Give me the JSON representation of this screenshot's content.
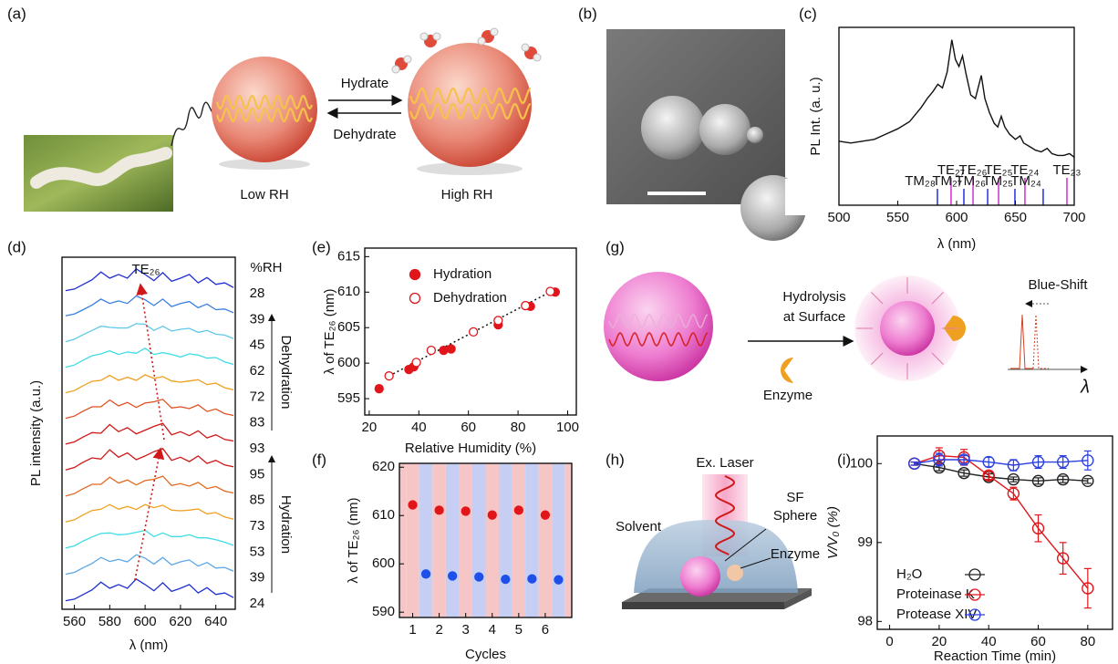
{
  "panel_labels": [
    "(a)",
    "(b)",
    "(c)",
    "(d)",
    "(e)",
    "(f)",
    "(g)",
    "(h)",
    "(i)"
  ],
  "diagram_a": {
    "arrow_top": "Hydrate",
    "arrow_bottom": "Dehydrate",
    "left": "Low RH",
    "right": "High RH"
  },
  "diagram_g": {
    "step": [
      "Hydrolysis",
      "at Surface"
    ],
    "shift": "Blue-Shift",
    "enzyme": "Enzyme",
    "axis": "λ"
  },
  "diagram_h": {
    "laser": "Ex. Laser",
    "sphere": [
      "SF",
      "Sphere"
    ],
    "solvent": "Solvent",
    "enzyme": "Enzyme"
  },
  "chart_data": [
    {
      "type": "line",
      "color": "#111111",
      "x_label": "λ (nm)",
      "y_label": "PL Int. (a. u.)",
      "xlim": [
        500,
        700
      ],
      "ylim": [
        0,
        1
      ],
      "xticks": [
        500,
        550,
        600,
        650,
        700
      ],
      "x": [
        500,
        510,
        520,
        530,
        540,
        550,
        560,
        570,
        575,
        580,
        584,
        588,
        592,
        596,
        599,
        602,
        605,
        608,
        612,
        616,
        621,
        624,
        628,
        632,
        635,
        638,
        641,
        645,
        650,
        654,
        657,
        662,
        667,
        672,
        677,
        681,
        686,
        691,
        696,
        700
      ],
      "values": [
        0.36,
        0.35,
        0.36,
        0.37,
        0.4,
        0.43,
        0.47,
        0.55,
        0.6,
        0.64,
        0.68,
        0.66,
        0.75,
        0.93,
        0.82,
        0.78,
        0.84,
        0.74,
        0.62,
        0.6,
        0.73,
        0.6,
        0.52,
        0.46,
        0.44,
        0.5,
        0.44,
        0.4,
        0.37,
        0.39,
        0.35,
        0.33,
        0.31,
        0.3,
        0.32,
        0.29,
        0.28,
        0.28,
        0.29,
        0.27
      ],
      "modes": [
        {
          "color": "#d63bd6",
          "labels": [
            "TE₂₇",
            "TE₂₆",
            "TE₂₅",
            "TE₂₄",
            "TE₂₃"
          ],
          "x": [
            595.3,
            614,
            635.7,
            658.1,
            693.8
          ]
        },
        {
          "color": "#2b3fe0",
          "labels": [
            "TM₂₈",
            "TM₂₇",
            "TM₂₆",
            "TM₂₅",
            "TM₂₄"
          ],
          "x": [
            583.7,
            606.2,
            626.4,
            649.6,
            673.6
          ]
        }
      ]
    },
    {
      "type": "waterfall",
      "x_label": "λ (nm)",
      "y_label": "PL intensity (a.u.)",
      "legend_title": "%RH",
      "peak_label": "TE₂₆",
      "annotations": {
        "dehydration": "Dehydration",
        "hydration": "Hydration"
      },
      "xlim": [
        553,
        651
      ],
      "ylim": [
        0,
        1
      ],
      "xticks": [
        560,
        580,
        600,
        620,
        640
      ],
      "x": [
        555,
        560,
        565,
        570,
        575,
        580,
        585,
        590,
        595,
        600,
        605,
        610,
        615,
        620,
        625,
        630,
        635,
        640,
        645,
        650
      ],
      "series": [
        {
          "name": "28",
          "color": "#1f2fd0",
          "values": [
            0.1,
            0.15,
            0.3,
            0.45,
            0.7,
            0.5,
            0.62,
            0.5,
            0.8,
            0.62,
            0.42,
            0.68,
            0.4,
            0.5,
            0.62,
            0.35,
            0.52,
            0.3,
            0.35,
            0.2
          ]
        },
        {
          "name": "39",
          "color": "#3a7fe0",
          "values": [
            0.12,
            0.18,
            0.32,
            0.47,
            0.66,
            0.52,
            0.6,
            0.52,
            0.76,
            0.64,
            0.45,
            0.66,
            0.42,
            0.52,
            0.58,
            0.38,
            0.5,
            0.32,
            0.34,
            0.22
          ]
        },
        {
          "name": "45",
          "color": "#5fc8e8",
          "values": [
            0.12,
            0.2,
            0.35,
            0.48,
            0.62,
            0.58,
            0.56,
            0.56,
            0.7,
            0.68,
            0.48,
            0.62,
            0.46,
            0.52,
            0.55,
            0.42,
            0.48,
            0.36,
            0.33,
            0.22
          ]
        },
        {
          "name": "62",
          "color": "#3fdce6",
          "values": [
            0.13,
            0.2,
            0.36,
            0.5,
            0.56,
            0.66,
            0.54,
            0.62,
            0.58,
            0.74,
            0.54,
            0.6,
            0.54,
            0.46,
            0.56,
            0.52,
            0.42,
            0.44,
            0.3,
            0.22
          ]
        },
        {
          "name": "72",
          "color": "#f0a020",
          "values": [
            0.14,
            0.21,
            0.37,
            0.51,
            0.54,
            0.7,
            0.54,
            0.64,
            0.54,
            0.72,
            0.6,
            0.66,
            0.52,
            0.48,
            0.52,
            0.56,
            0.4,
            0.45,
            0.3,
            0.23
          ]
        },
        {
          "name": "83",
          "color": "#e05020",
          "values": [
            0.15,
            0.22,
            0.38,
            0.52,
            0.52,
            0.74,
            0.55,
            0.66,
            0.5,
            0.64,
            0.68,
            0.76,
            0.48,
            0.52,
            0.46,
            0.58,
            0.37,
            0.45,
            0.3,
            0.24
          ]
        },
        {
          "name": "93",
          "color": "#d01818",
          "values": [
            0.15,
            0.22,
            0.38,
            0.52,
            0.5,
            0.78,
            0.55,
            0.68,
            0.48,
            0.6,
            0.72,
            0.82,
            0.45,
            0.55,
            0.42,
            0.58,
            0.35,
            0.45,
            0.3,
            0.25
          ]
        },
        {
          "name": "95",
          "color": "#d01818",
          "values": [
            0.15,
            0.23,
            0.4,
            0.54,
            0.5,
            0.8,
            0.56,
            0.7,
            0.48,
            0.6,
            0.74,
            0.84,
            0.46,
            0.56,
            0.42,
            0.6,
            0.36,
            0.46,
            0.31,
            0.25
          ]
        },
        {
          "name": "85",
          "color": "#e06a20",
          "values": [
            0.14,
            0.22,
            0.38,
            0.52,
            0.52,
            0.75,
            0.56,
            0.66,
            0.5,
            0.64,
            0.68,
            0.78,
            0.48,
            0.54,
            0.46,
            0.58,
            0.38,
            0.45,
            0.3,
            0.24
          ]
        },
        {
          "name": "73",
          "color": "#f0a020",
          "values": [
            0.14,
            0.21,
            0.37,
            0.51,
            0.55,
            0.7,
            0.55,
            0.64,
            0.54,
            0.7,
            0.6,
            0.68,
            0.52,
            0.5,
            0.52,
            0.56,
            0.4,
            0.44,
            0.3,
            0.23
          ]
        },
        {
          "name": "53",
          "color": "#3fdce6",
          "values": [
            0.13,
            0.2,
            0.36,
            0.49,
            0.6,
            0.62,
            0.56,
            0.58,
            0.64,
            0.7,
            0.5,
            0.62,
            0.5,
            0.5,
            0.56,
            0.46,
            0.46,
            0.4,
            0.32,
            0.22
          ]
        },
        {
          "name": "39",
          "color": "#5aa8e8",
          "values": [
            0.12,
            0.18,
            0.33,
            0.47,
            0.66,
            0.53,
            0.6,
            0.52,
            0.75,
            0.64,
            0.45,
            0.66,
            0.42,
            0.52,
            0.58,
            0.38,
            0.5,
            0.32,
            0.34,
            0.22
          ]
        },
        {
          "name": "24",
          "color": "#1f2fd0",
          "values": [
            0.1,
            0.15,
            0.3,
            0.45,
            0.7,
            0.5,
            0.62,
            0.5,
            0.8,
            0.62,
            0.42,
            0.68,
            0.4,
            0.5,
            0.62,
            0.35,
            0.52,
            0.3,
            0.35,
            0.2
          ]
        }
      ]
    },
    {
      "type": "scatter",
      "x_label": "Relative Humidity (%)",
      "y_label": "λ of TE₂₆ (nm)",
      "xlim": [
        18.2,
        103.5
      ],
      "ylim": [
        592.7,
        616.2
      ],
      "xticks": [
        20,
        40,
        60,
        80,
        100
      ],
      "yticks": [
        595,
        600,
        605,
        610,
        615
      ],
      "series": [
        {
          "name": "Hydration",
          "color": "#e0161b",
          "filled": true,
          "x": [
            24,
            36,
            38,
            50,
            53,
            72,
            85,
            95
          ],
          "values": [
            596.4,
            599.1,
            599.5,
            601.8,
            602.0,
            605.4,
            608.0,
            610.0
          ]
        },
        {
          "name": "Dehydration",
          "color": "#e0161b",
          "filled": false,
          "x": [
            28,
            39,
            45,
            62,
            72,
            83,
            93
          ],
          "values": [
            598.2,
            600.1,
            601.8,
            604.4,
            606.0,
            608.1,
            610.1
          ]
        }
      ],
      "fit": {
        "x": [
          28,
          95
        ],
        "values": [
          598.2,
          610.4
        ]
      }
    },
    {
      "type": "scatter",
      "x_label": "Cycles",
      "y_label": "λ of TE₂₆ (nm)",
      "xlim": [
        0.5,
        7
      ],
      "ylim": [
        588.9,
        620.8
      ],
      "xticks": [
        1,
        2,
        3,
        4,
        5,
        6
      ],
      "yticks": [
        590,
        600,
        610,
        620
      ],
      "band_colors": [
        "#f6c6c6",
        "#c6cff3"
      ],
      "series": [
        {
          "color": "#e0161b",
          "filled": true,
          "x": [
            1,
            2,
            3,
            4,
            5,
            6
          ],
          "values": [
            612.2,
            611.1,
            610.9,
            610.1,
            611.1,
            610.1
          ]
        },
        {
          "color": "#1f4fe8",
          "filled": true,
          "x": [
            1.5,
            2.5,
            3.5,
            4.5,
            5.5,
            6.5
          ],
          "values": [
            597.9,
            597.5,
            597.3,
            596.8,
            596.9,
            596.7
          ]
        }
      ]
    },
    {
      "type": "line",
      "x_label": "Reaction Time (min)",
      "y_label": "V/V₀ (%)",
      "xlim": [
        -5,
        90
      ],
      "ylim": [
        97.9,
        100.35
      ],
      "xticks": [
        0,
        20,
        40,
        60,
        80
      ],
      "yticks": [
        98,
        99,
        100
      ],
      "series": [
        {
          "name": "H₂O",
          "color": "#222222",
          "x": [
            10,
            20,
            30,
            40,
            50,
            60,
            70,
            80
          ],
          "values": [
            100,
            99.95,
            99.88,
            99.83,
            99.8,
            99.78,
            99.8,
            99.78
          ],
          "errors": [
            0.02,
            0.04,
            0.04,
            0.04,
            0.03,
            0.04,
            0.04,
            0.03
          ]
        },
        {
          "name": "Proteinase K",
          "color": "#e0161b",
          "x": [
            10,
            20,
            30,
            40,
            50,
            60,
            70,
            80
          ],
          "values": [
            100,
            100.1,
            100.08,
            99.85,
            99.62,
            99.18,
            98.8,
            98.42
          ],
          "errors": [
            0.02,
            0.1,
            0.1,
            0.05,
            0.08,
            0.17,
            0.2,
            0.25
          ]
        },
        {
          "name": "Protease XIV",
          "color": "#2b3fe0",
          "x": [
            10,
            20,
            30,
            40,
            50,
            60,
            70,
            80
          ],
          "values": [
            100,
            100.05,
            100.05,
            100.02,
            99.98,
            100.02,
            100.02,
            100.04
          ],
          "errors": [
            0.02,
            0.08,
            0.05,
            0.06,
            0.07,
            0.08,
            0.08,
            0.12
          ]
        }
      ]
    }
  ]
}
